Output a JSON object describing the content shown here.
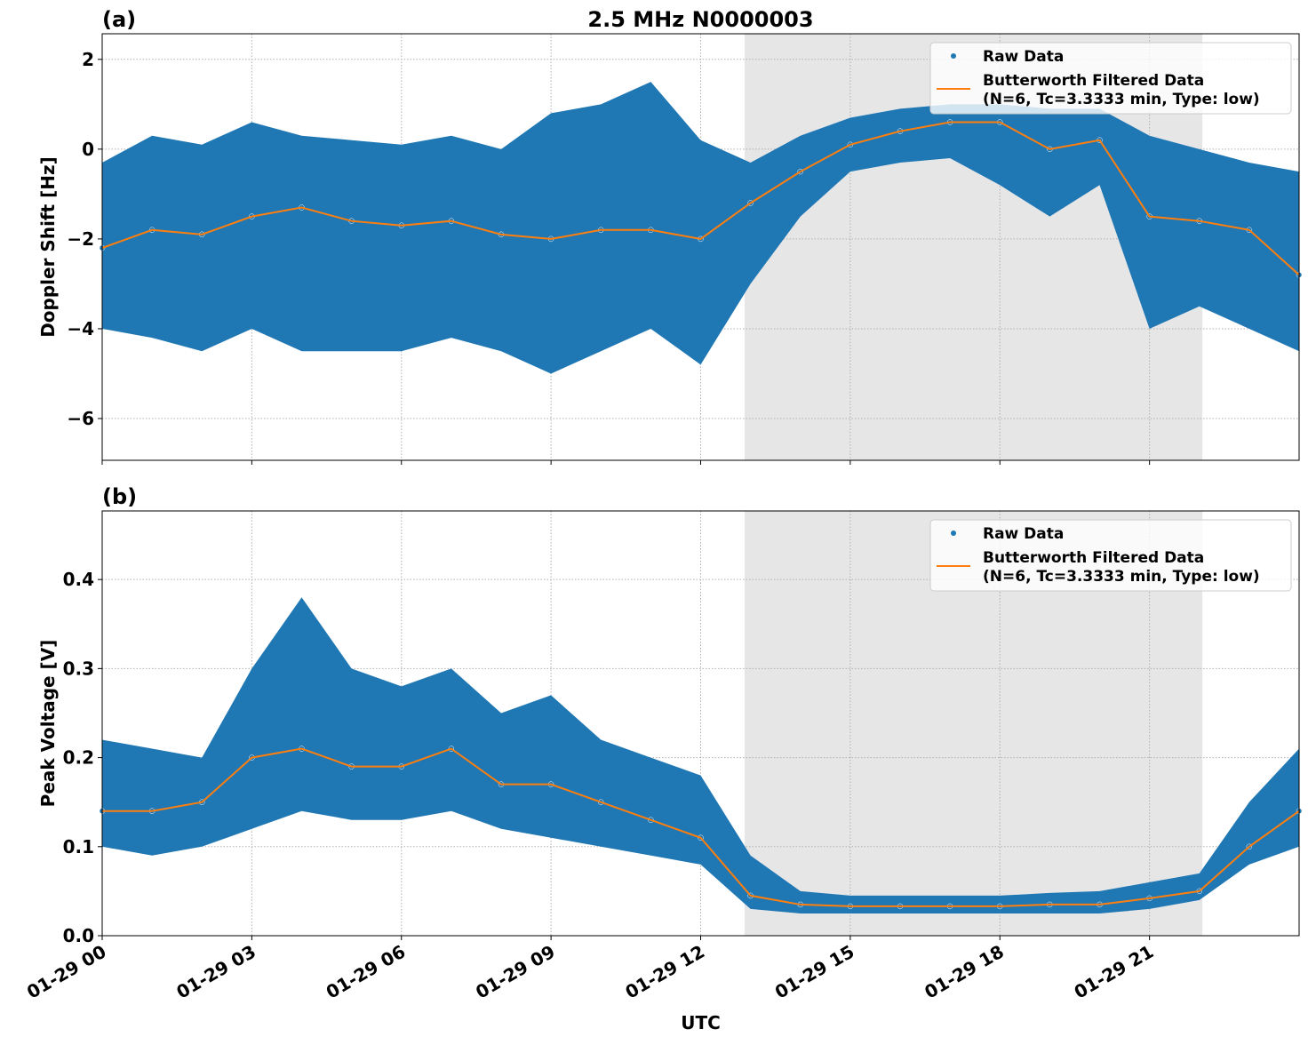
{
  "chart_data": [
    {
      "type": "scatter",
      "panel_label": "(a)",
      "title": "2.5 MHz N0000003",
      "ylabel": "Doppler Shift [Hz]",
      "xlabel": "",
      "xlim_hours": [
        0,
        24
      ],
      "ylim": [
        -6.93,
        2.57
      ],
      "yticks": [
        -6,
        -4,
        -2,
        0,
        2
      ],
      "ytick_labels": [
        "−6",
        "−4",
        "−2",
        "0",
        "2"
      ],
      "grid": true,
      "legend_placement": "top-right",
      "shaded_interval_hours": [
        12.88,
        22.06
      ],
      "x_hours": [
        0,
        1,
        2,
        3,
        4,
        5,
        6,
        7,
        8,
        9,
        10,
        11,
        12,
        13,
        14,
        15,
        16,
        17,
        18,
        19,
        20,
        21,
        22,
        23,
        24
      ],
      "series": [
        {
          "name": "Raw Data",
          "kind": "scatter",
          "color": "#1f77b4",
          "min": [
            -4.0,
            -4.2,
            -4.5,
            -4.0,
            -4.5,
            -4.5,
            -4.5,
            -4.2,
            -4.5,
            -5.0,
            -4.5,
            -4.0,
            -4.8,
            -3.0,
            -1.5,
            -0.5,
            -0.3,
            -0.2,
            -0.8,
            -1.5,
            -0.8,
            -4.0,
            -3.5,
            -4.0,
            -4.5
          ],
          "max": [
            -0.3,
            0.3,
            0.1,
            0.6,
            0.3,
            0.2,
            0.1,
            0.3,
            0.0,
            0.8,
            1.0,
            1.5,
            0.2,
            -0.3,
            0.3,
            0.7,
            0.9,
            1.0,
            1.0,
            0.9,
            0.9,
            0.3,
            0.0,
            -0.3,
            -0.5
          ]
        },
        {
          "name": "Butterworth Filtered Data\n(N=6, Tc=3.3333 min, Type: low)",
          "kind": "line",
          "color": "#ff7f0e",
          "values": [
            -2.2,
            -1.8,
            -1.9,
            -1.5,
            -1.3,
            -1.6,
            -1.7,
            -1.6,
            -1.9,
            -2.0,
            -1.8,
            -1.8,
            -2.0,
            -1.2,
            -0.5,
            0.1,
            0.4,
            0.6,
            0.6,
            0.0,
            0.2,
            -1.5,
            -1.6,
            -1.8,
            -2.8
          ]
        }
      ]
    },
    {
      "type": "scatter",
      "panel_label": "(b)",
      "title": "",
      "ylabel": "Peak Voltage [V]",
      "xlabel": "UTC",
      "xlim_hours": [
        0,
        24
      ],
      "ylim": [
        0,
        0.477
      ],
      "yticks": [
        0,
        0.1,
        0.2,
        0.3,
        0.4
      ],
      "ytick_labels": [
        "0.0",
        "0.1",
        "0.2",
        "0.3",
        "0.4"
      ],
      "grid": true,
      "legend_placement": "top-right",
      "shaded_interval_hours": [
        12.88,
        22.06
      ],
      "x_hours": [
        0,
        1,
        2,
        3,
        4,
        5,
        6,
        7,
        8,
        9,
        10,
        11,
        12,
        13,
        14,
        15,
        16,
        17,
        18,
        19,
        20,
        21,
        22,
        23,
        24
      ],
      "series": [
        {
          "name": "Raw Data",
          "kind": "scatter",
          "color": "#1f77b4",
          "min": [
            0.1,
            0.09,
            0.1,
            0.12,
            0.14,
            0.13,
            0.13,
            0.14,
            0.12,
            0.11,
            0.1,
            0.09,
            0.08,
            0.03,
            0.025,
            0.025,
            0.025,
            0.025,
            0.025,
            0.025,
            0.025,
            0.03,
            0.04,
            0.08,
            0.1
          ],
          "max": [
            0.22,
            0.21,
            0.2,
            0.3,
            0.38,
            0.3,
            0.28,
            0.3,
            0.25,
            0.27,
            0.22,
            0.2,
            0.18,
            0.09,
            0.05,
            0.045,
            0.045,
            0.045,
            0.045,
            0.048,
            0.05,
            0.06,
            0.07,
            0.15,
            0.21
          ]
        },
        {
          "name": "Butterworth Filtered Data\n(N=6, Tc=3.3333 min, Type: low)",
          "kind": "line",
          "color": "#ff7f0e",
          "values": [
            0.14,
            0.14,
            0.15,
            0.2,
            0.21,
            0.19,
            0.19,
            0.21,
            0.17,
            0.17,
            0.15,
            0.13,
            0.11,
            0.045,
            0.035,
            0.033,
            0.033,
            0.033,
            0.033,
            0.035,
            0.035,
            0.042,
            0.05,
            0.1,
            0.14
          ]
        }
      ]
    }
  ],
  "xticks_hours": [
    0,
    3,
    6,
    9,
    12,
    15,
    18,
    21
  ],
  "xtick_labels": [
    "01-29 00",
    "01-29 03",
    "01-29 06",
    "01-29 09",
    "01-29 12",
    "01-29 15",
    "01-29 18",
    "01-29 21"
  ],
  "colors": {
    "shade": "#e6e6e6",
    "grid": "#b0b0b0"
  }
}
